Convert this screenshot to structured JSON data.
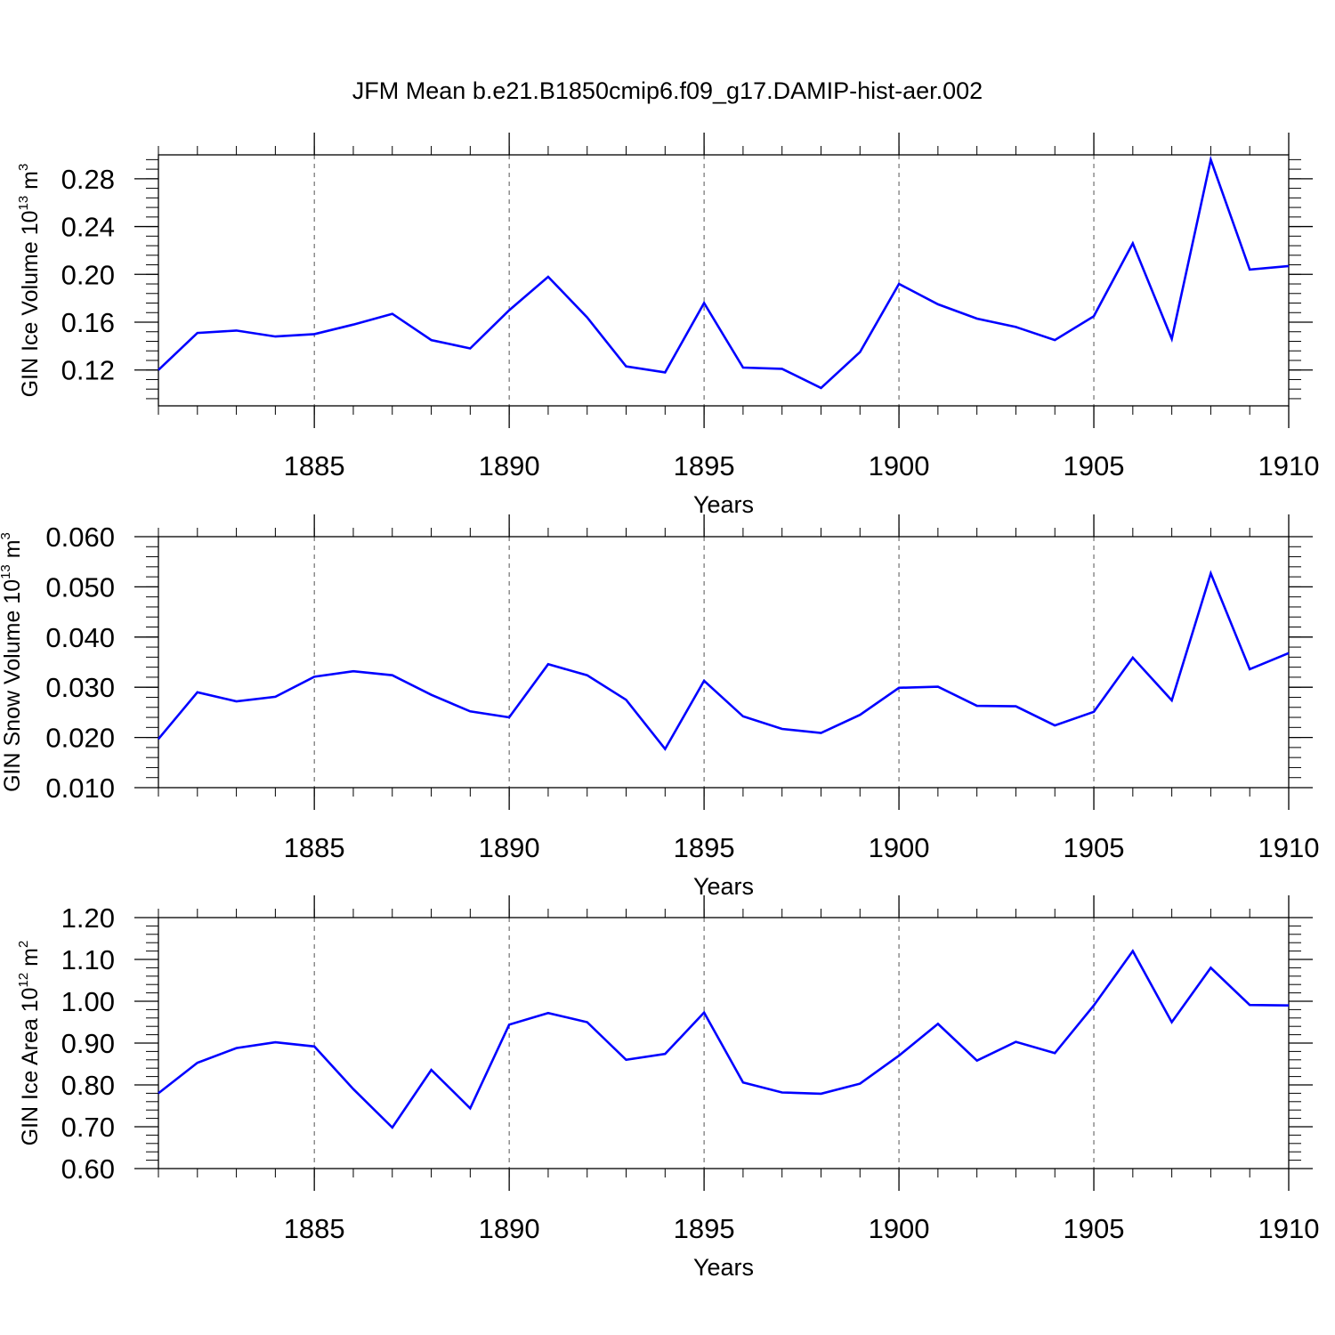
{
  "title": "JFM Mean b.e21.B1850cmip6.f09_g17.DAMIP-hist-aer.002",
  "chart_data": [
    {
      "type": "line",
      "xlabel": "Years",
      "ylabel": {
        "text": "GIN Ice Volume 10",
        "sup": "13",
        "unit": " m",
        "unit_sup": "3"
      },
      "xlim": [
        1881,
        1910
      ],
      "ylim": [
        0.09,
        0.3
      ],
      "xticks": [
        1885,
        1890,
        1895,
        1900,
        1905,
        1910
      ],
      "xtick_labels": [
        "1885",
        "1890",
        "1895",
        "1900",
        "1905",
        "1910"
      ],
      "yticks": [
        0.12,
        0.16,
        0.2,
        0.24,
        0.28
      ],
      "ytick_labels": [
        "0.12",
        "0.16",
        "0.20",
        "0.24",
        "0.28"
      ],
      "grid": "dashed vertical at major x ticks",
      "color": "#0000ff",
      "x": [
        1881,
        1882,
        1883,
        1884,
        1885,
        1886,
        1887,
        1888,
        1889,
        1890,
        1891,
        1892,
        1893,
        1894,
        1895,
        1896,
        1897,
        1898,
        1899,
        1900,
        1901,
        1902,
        1903,
        1904,
        1905,
        1906,
        1907,
        1908,
        1909,
        1910
      ],
      "values": [
        0.12,
        0.151,
        0.153,
        0.148,
        0.15,
        0.158,
        0.167,
        0.145,
        0.138,
        0.17,
        0.198,
        0.164,
        0.123,
        0.118,
        0.176,
        0.122,
        0.121,
        0.105,
        0.135,
        0.192,
        0.175,
        0.163,
        0.156,
        0.145,
        0.165,
        0.226,
        0.146,
        0.296,
        0.204,
        0.207
      ]
    },
    {
      "type": "line",
      "xlabel": "Years",
      "ylabel": {
        "text": "GIN Snow Volume 10",
        "sup": "13",
        "unit": " m",
        "unit_sup": "3"
      },
      "xlim": [
        1881,
        1910
      ],
      "ylim": [
        0.01,
        0.06
      ],
      "xticks": [
        1885,
        1890,
        1895,
        1900,
        1905,
        1910
      ],
      "xtick_labels": [
        "1885",
        "1890",
        "1895",
        "1900",
        "1905",
        "1910"
      ],
      "yticks": [
        0.01,
        0.02,
        0.03,
        0.04,
        0.05,
        0.06
      ],
      "ytick_labels": [
        "0.010",
        "0.020",
        "0.030",
        "0.040",
        "0.050",
        "0.060"
      ],
      "grid": "dashed vertical at major x ticks",
      "color": "#0000ff",
      "x": [
        1881,
        1882,
        1883,
        1884,
        1885,
        1886,
        1887,
        1888,
        1889,
        1890,
        1891,
        1892,
        1893,
        1894,
        1895,
        1896,
        1897,
        1898,
        1899,
        1900,
        1901,
        1902,
        1903,
        1904,
        1905,
        1906,
        1907,
        1908,
        1909,
        1910
      ],
      "values": [
        0.0197,
        0.029,
        0.0272,
        0.0281,
        0.0321,
        0.0332,
        0.0324,
        0.0285,
        0.0252,
        0.024,
        0.0346,
        0.0324,
        0.0275,
        0.0177,
        0.0313,
        0.0242,
        0.0217,
        0.0209,
        0.0245,
        0.0299,
        0.0301,
        0.0263,
        0.0262,
        0.0224,
        0.0251,
        0.0359,
        0.0274,
        0.0527,
        0.0336,
        0.0368
      ]
    },
    {
      "type": "line",
      "xlabel": "Years",
      "ylabel": {
        "text": "GIN Ice Area 10",
        "sup": "12",
        "unit": " m",
        "unit_sup": "2"
      },
      "xlim": [
        1881,
        1910
      ],
      "ylim": [
        0.6,
        1.2
      ],
      "xticks": [
        1885,
        1890,
        1895,
        1900,
        1905,
        1910
      ],
      "xtick_labels": [
        "1885",
        "1890",
        "1895",
        "1900",
        "1905",
        "1910"
      ],
      "yticks": [
        0.6,
        0.7,
        0.8,
        0.9,
        1.0,
        1.1,
        1.2
      ],
      "ytick_labels": [
        "0.60",
        "0.70",
        "0.80",
        "0.90",
        "1.00",
        "1.10",
        "1.20"
      ],
      "grid": "dashed vertical at major x ticks",
      "color": "#0000ff",
      "x": [
        1881,
        1882,
        1883,
        1884,
        1885,
        1886,
        1887,
        1888,
        1889,
        1890,
        1891,
        1892,
        1893,
        1894,
        1895,
        1896,
        1897,
        1898,
        1899,
        1900,
        1901,
        1902,
        1903,
        1904,
        1905,
        1906,
        1907,
        1908,
        1909,
        1910
      ],
      "values": [
        0.78,
        0.853,
        0.888,
        0.902,
        0.892,
        0.79,
        0.698,
        0.836,
        0.744,
        0.944,
        0.972,
        0.95,
        0.86,
        0.874,
        0.973,
        0.806,
        0.782,
        0.779,
        0.803,
        0.87,
        0.946,
        0.858,
        0.903,
        0.876,
        0.99,
        1.12,
        0.95,
        1.08,
        0.991,
        0.99
      ]
    }
  ]
}
